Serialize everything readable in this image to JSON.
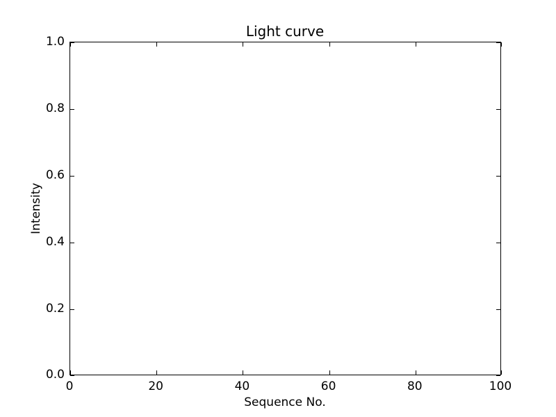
{
  "chart_data": {
    "type": "line",
    "title": "Light curve",
    "xlabel": "Sequence No.",
    "ylabel": "Intensity",
    "xlim": [
      0,
      100
    ],
    "ylim": [
      0.0,
      1.0
    ],
    "x_tick_labels": [
      "0",
      "20",
      "40",
      "60",
      "80",
      "100"
    ],
    "y_tick_labels": [
      "0.0",
      "0.2",
      "0.4",
      "0.6",
      "0.8",
      "1.0"
    ],
    "series": [],
    "grid": false,
    "legend_position": "none",
    "tick_direction": "in"
  },
  "colors": {
    "background": "#ffffff",
    "spine": "#000000",
    "text": "#000000"
  }
}
